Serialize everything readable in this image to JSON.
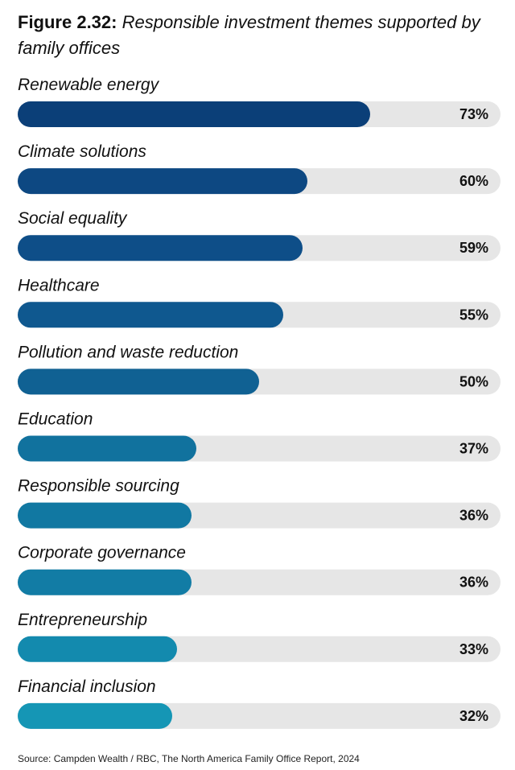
{
  "figure": {
    "number": "Figure 2.32:",
    "title": "Responsible investment themes supported by family offices"
  },
  "chart_data": {
    "type": "bar",
    "orientation": "horizontal",
    "title": "Responsible investment themes supported by family offices",
    "categories": [
      "Renewable energy",
      "Climate solutions",
      "Social equality",
      "Healthcare",
      "Pollution and waste reduction",
      "Education",
      "Responsible sourcing",
      "Corporate governance",
      "Entrepreneurship",
      "Financial inclusion"
    ],
    "values": [
      73,
      60,
      59,
      55,
      50,
      37,
      36,
      36,
      33,
      32
    ],
    "value_labels": [
      "73%",
      "60%",
      "59%",
      "55%",
      "50%",
      "37%",
      "36%",
      "36%",
      "33%",
      "32%"
    ],
    "unit": "%",
    "xlim": [
      0,
      100
    ],
    "colors": [
      "#0b3f78",
      "#0d4882",
      "#0e4e88",
      "#0f588f",
      "#106193",
      "#11729e",
      "#1178a2",
      "#127ca5",
      "#138aae",
      "#1596b5"
    ],
    "track_color": "#e6e6e6"
  },
  "source": "Source: Campden Wealth / RBC, The North America Family Office Report, 2024"
}
